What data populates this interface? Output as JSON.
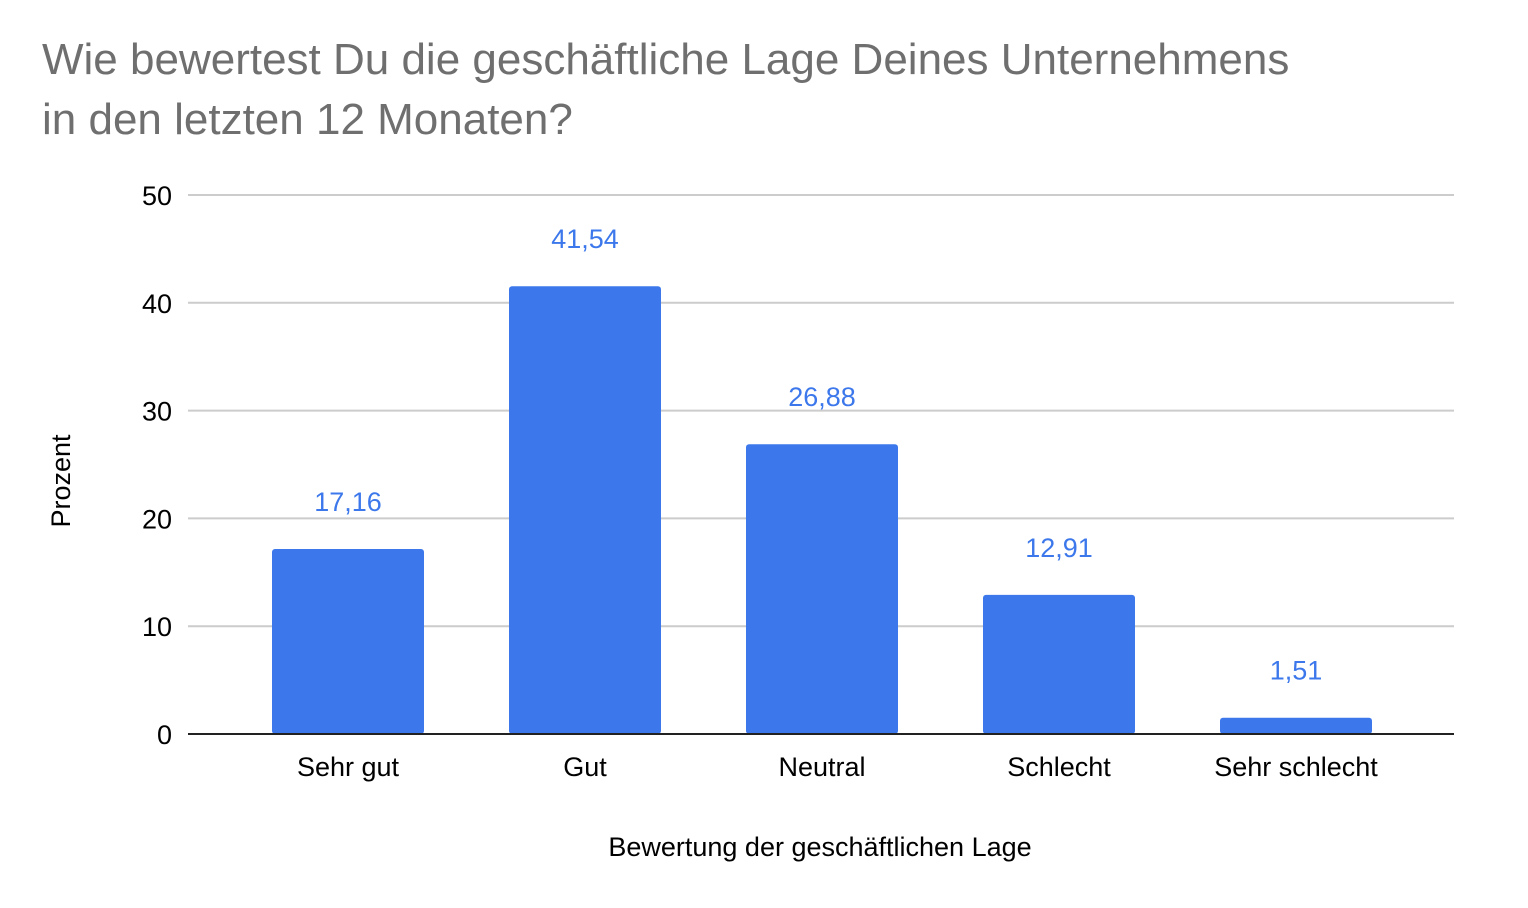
{
  "chart_data": {
    "type": "bar",
    "title_lines": [
      "Wie bewertest Du die geschäftliche Lage Deines Unternehmens",
      "in den letzten 12 Monaten?"
    ],
    "xlabel": "Bewertung der geschäftlichen Lage",
    "ylabel": "Prozent",
    "categories": [
      "Sehr gut",
      "Gut",
      "Neutral",
      "Schlecht",
      "Sehr schlecht"
    ],
    "values": [
      17.16,
      41.54,
      26.88,
      12.91,
      1.51
    ],
    "data_labels": [
      "17,16",
      "41,54",
      "26,88",
      "12,91",
      "1,51"
    ],
    "ylim": [
      0,
      50
    ],
    "yticks": [
      0,
      10,
      20,
      30,
      40,
      50
    ],
    "grid": true,
    "legend": "none",
    "colors": {
      "bar": "#3c78eb",
      "data_label": "#3c78eb",
      "title": "#6f6f6f",
      "grid": "#cccccc",
      "axis": "#222222"
    }
  }
}
